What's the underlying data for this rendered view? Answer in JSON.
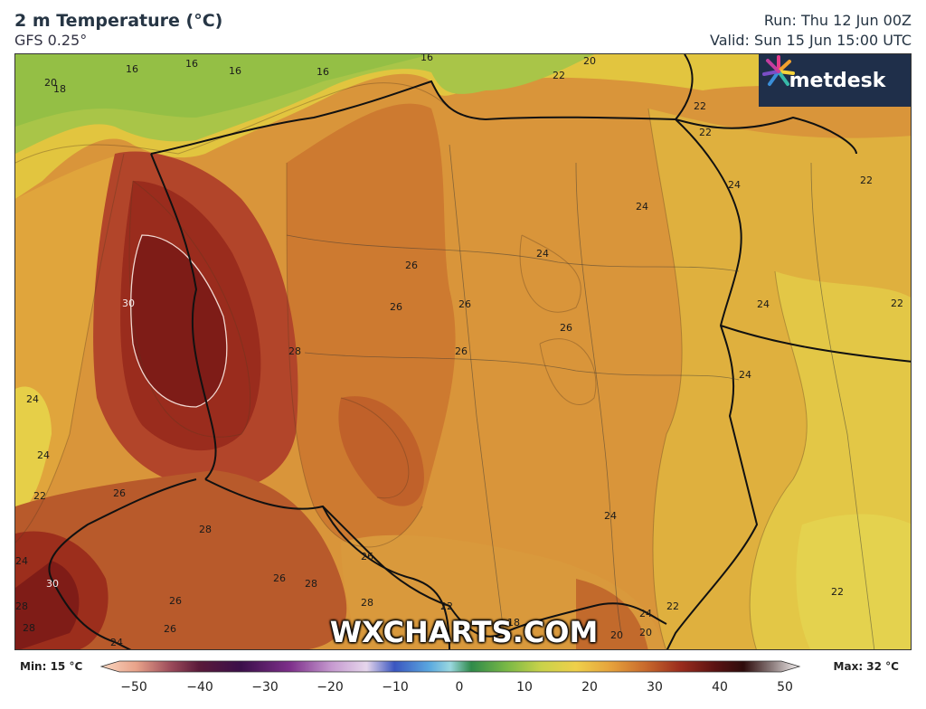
{
  "header": {
    "title": "2 m Temperature (°C)",
    "subtitle": "GFS 0.25°",
    "run": "Run: Thu 12 Jun 00Z",
    "valid": "Valid: Sun 15 Jun 15:00 UTC"
  },
  "logo": {
    "text": "metdesk"
  },
  "watermark": "WXCHARTS.COM",
  "legend": {
    "min_label": "Min: 15 °C",
    "max_label": "Max: 32 °C",
    "ticks": [
      "−50",
      "−40",
      "−30",
      "−20",
      "−10",
      "0",
      "10",
      "20",
      "30",
      "40",
      "50"
    ]
  },
  "contour_labels": [
    "20",
    "18",
    "16",
    "16",
    "16",
    "16",
    "16",
    "20",
    "22",
    "22",
    "22",
    "22",
    "24",
    "24",
    "24",
    "26",
    "26",
    "26",
    "26",
    "26",
    "28",
    "30",
    "22",
    "24",
    "24",
    "24",
    "22",
    "26",
    "28",
    "24",
    "24",
    "26",
    "26",
    "28",
    "26",
    "28",
    "30",
    "24",
    "28",
    "28",
    "26",
    "24",
    "22",
    "20",
    "20",
    "18",
    "24",
    "22",
    "22"
  ],
  "colors": {
    "cold_green": "#9cc045",
    "yellow": "#e2cb3c",
    "orange": "#d99236",
    "dark_orange": "#c8702e",
    "red": "#a8341f",
    "dark_red": "#7a1a17",
    "logo_bg": "#1f2f4a"
  }
}
